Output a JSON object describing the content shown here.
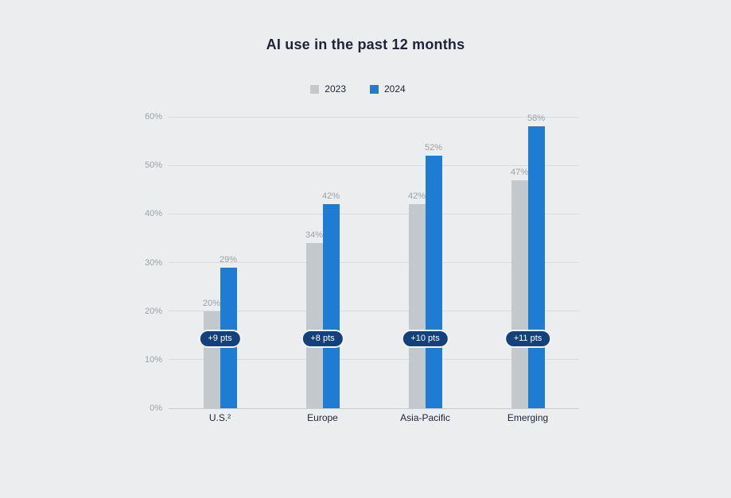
{
  "page": {
    "background": "#ECEDEF"
  },
  "chart_data": {
    "type": "bar",
    "title": "AI use in the past 12 months",
    "categories": [
      "U.S.²",
      "Europe",
      "Asia-Pacific",
      "Emerging"
    ],
    "series": [
      {
        "name": "2023",
        "color": "#C3C8CC",
        "values": [
          20,
          34,
          42,
          47
        ]
      },
      {
        "name": "2024",
        "color": "#1E7CD2",
        "values": [
          29,
          42,
          52,
          58
        ]
      }
    ],
    "deltas": [
      "+9 pts",
      "+8 pts",
      "+10 pts",
      "+11 pts"
    ],
    "delta_style": {
      "background": "#14417B",
      "text_color": "#FFFFFF",
      "border_color": "#F2F4F5"
    },
    "value_suffix": "%",
    "y_tick_labels": [
      "0%",
      "10%",
      "20%",
      "30%",
      "40%",
      "50%",
      "60%"
    ],
    "y_tick_values": [
      0,
      10,
      20,
      30,
      40,
      50,
      60
    ],
    "ylim": [
      0,
      60
    ],
    "grid": true,
    "legend_position": "top",
    "xlabel": "",
    "ylabel": ""
  }
}
